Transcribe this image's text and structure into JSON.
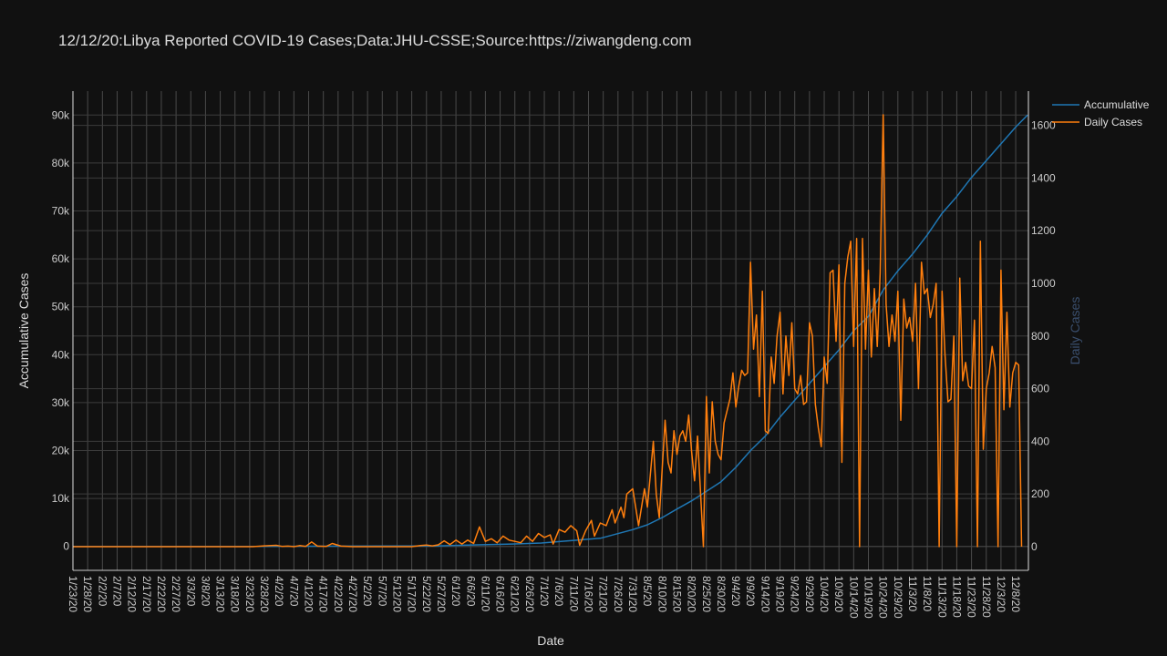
{
  "chart_data": {
    "type": "line",
    "title": "12/12/20:Libya Reported COVID-19 Cases;Data:JHU-CSSE;Source:https://ziwangdeng.com",
    "xlabel": "Date",
    "ylabel_left": "Accumulative Cases",
    "ylabel_right": "Daily Cases",
    "x_range": [
      "1/23/20",
      "12/12/20"
    ],
    "x_ticks": [
      "1/23/20",
      "1/28/20",
      "2/2/20",
      "2/7/20",
      "2/12/20",
      "2/17/20",
      "2/22/20",
      "2/27/20",
      "3/3/20",
      "3/8/20",
      "3/13/20",
      "3/18/20",
      "3/23/20",
      "3/28/20",
      "4/2/20",
      "4/7/20",
      "4/12/20",
      "4/17/20",
      "4/22/20",
      "4/27/20",
      "5/2/20",
      "5/7/20",
      "5/12/20",
      "5/17/20",
      "5/22/20",
      "5/27/20",
      "6/1/20",
      "6/6/20",
      "6/11/20",
      "6/16/20",
      "6/21/20",
      "6/26/20",
      "7/1/20",
      "7/6/20",
      "7/11/20",
      "7/16/20",
      "7/21/20",
      "7/26/20",
      "7/31/20",
      "8/5/20",
      "8/10/20",
      "8/15/20",
      "8/20/20",
      "8/25/20",
      "8/30/20",
      "9/4/20",
      "9/9/20",
      "9/14/20",
      "9/19/20",
      "9/24/20",
      "9/29/20",
      "10/4/20",
      "10/9/20",
      "10/14/20",
      "10/19/20",
      "10/24/20",
      "10/29/20",
      "11/3/20",
      "11/8/20",
      "11/13/20",
      "11/18/20",
      "11/23/20",
      "11/28/20",
      "12/3/20",
      "12/8/20"
    ],
    "y_left_ticks": [
      "0",
      "10k",
      "20k",
      "30k",
      "40k",
      "50k",
      "60k",
      "70k",
      "80k",
      "90k"
    ],
    "y_left_range": [
      -5000,
      95000
    ],
    "y_right_ticks": [
      "0",
      "200",
      "400",
      "600",
      "800",
      "1000",
      "1200",
      "1400",
      "1600"
    ],
    "y_right_range": [
      -90,
      1730
    ],
    "legend_position": "top-right",
    "series": [
      {
        "name": "Accumulative",
        "color": "#1f77b4",
        "axis": "left",
        "points": [
          [
            "1/23/20",
            0
          ],
          [
            "3/24/20",
            0
          ],
          [
            "4/15/20",
            40
          ],
          [
            "5/15/20",
            70
          ],
          [
            "5/25/20",
            100
          ],
          [
            "6/1/20",
            200
          ],
          [
            "6/10/20",
            350
          ],
          [
            "6/20/20",
            500
          ],
          [
            "6/30/20",
            700
          ],
          [
            "7/10/20",
            1200
          ],
          [
            "7/20/20",
            1700
          ],
          [
            "7/31/20",
            3500
          ],
          [
            "8/5/20",
            4500
          ],
          [
            "8/10/20",
            6000
          ],
          [
            "8/15/20",
            7800
          ],
          [
            "8/20/20",
            9500
          ],
          [
            "8/25/20",
            11500
          ],
          [
            "8/30/20",
            13500
          ],
          [
            "9/4/20",
            16500
          ],
          [
            "9/9/20",
            20000
          ],
          [
            "9/14/20",
            23000
          ],
          [
            "9/19/20",
            27000
          ],
          [
            "9/24/20",
            30500
          ],
          [
            "9/29/20",
            34000
          ],
          [
            "10/4/20",
            37500
          ],
          [
            "10/9/20",
            41000
          ],
          [
            "10/14/20",
            45000
          ],
          [
            "10/19/20",
            48000
          ],
          [
            "10/24/20",
            53500
          ],
          [
            "10/29/20",
            57500
          ],
          [
            "11/3/20",
            61000
          ],
          [
            "11/8/20",
            65000
          ],
          [
            "11/13/20",
            69500
          ],
          [
            "11/18/20",
            73000
          ],
          [
            "11/23/20",
            77000
          ],
          [
            "11/28/20",
            80500
          ],
          [
            "12/3/20",
            84000
          ],
          [
            "12/8/20",
            87500
          ],
          [
            "12/12/20",
            90000
          ]
        ]
      },
      {
        "name": "Daily Cases",
        "color": "#ff7f0e",
        "axis": "right",
        "points": [
          [
            "1/23/20",
            0
          ],
          [
            "3/24/20",
            0
          ],
          [
            "3/28/20",
            3
          ],
          [
            "4/1/20",
            5
          ],
          [
            "4/3/20",
            1
          ],
          [
            "4/5/20",
            2
          ],
          [
            "4/7/20",
            0
          ],
          [
            "4/9/20",
            4
          ],
          [
            "4/11/20",
            1
          ],
          [
            "4/13/20",
            18
          ],
          [
            "4/15/20",
            2
          ],
          [
            "4/18/20",
            1
          ],
          [
            "4/20/20",
            12
          ],
          [
            "4/23/20",
            2
          ],
          [
            "4/27/20",
            0
          ],
          [
            "5/17/20",
            0
          ],
          [
            "5/20/20",
            4
          ],
          [
            "5/22/20",
            6
          ],
          [
            "5/24/20",
            3
          ],
          [
            "5/26/20",
            7
          ],
          [
            "5/28/20",
            22
          ],
          [
            "5/30/20",
            8
          ],
          [
            "6/1/20",
            25
          ],
          [
            "6/3/20",
            10
          ],
          [
            "6/5/20",
            25
          ],
          [
            "6/7/20",
            12
          ],
          [
            "6/9/20",
            75
          ],
          [
            "6/11/20",
            20
          ],
          [
            "6/13/20",
            30
          ],
          [
            "6/15/20",
            15
          ],
          [
            "6/17/20",
            40
          ],
          [
            "6/19/20",
            25
          ],
          [
            "6/21/20",
            20
          ],
          [
            "6/23/20",
            15
          ],
          [
            "6/25/20",
            40
          ],
          [
            "6/27/20",
            20
          ],
          [
            "6/29/20",
            50
          ],
          [
            "7/1/20",
            35
          ],
          [
            "7/3/20",
            45
          ],
          [
            "7/4/20",
            10
          ],
          [
            "7/6/20",
            65
          ],
          [
            "7/8/20",
            55
          ],
          [
            "7/10/20",
            80
          ],
          [
            "7/12/20",
            60
          ],
          [
            "7/13/20",
            5
          ],
          [
            "7/15/20",
            60
          ],
          [
            "7/17/20",
            100
          ],
          [
            "7/18/20",
            40
          ],
          [
            "7/20/20",
            90
          ],
          [
            "7/22/20",
            80
          ],
          [
            "7/24/20",
            140
          ],
          [
            "7/25/20",
            90
          ],
          [
            "7/27/20",
            150
          ],
          [
            "7/28/20",
            110
          ],
          [
            "7/29/20",
            200
          ],
          [
            "7/31/20",
            220
          ],
          [
            "8/2/20",
            80
          ],
          [
            "8/4/20",
            220
          ],
          [
            "8/5/20",
            150
          ],
          [
            "8/7/20",
            400
          ],
          [
            "8/8/20",
            200
          ],
          [
            "8/9/20",
            110
          ],
          [
            "8/11/20",
            480
          ],
          [
            "8/12/20",
            320
          ],
          [
            "8/13/20",
            280
          ],
          [
            "8/14/20",
            440
          ],
          [
            "8/15/20",
            350
          ],
          [
            "8/16/20",
            420
          ],
          [
            "8/17/20",
            440
          ],
          [
            "8/18/20",
            400
          ],
          [
            "8/19/20",
            500
          ],
          [
            "8/20/20",
            360
          ],
          [
            "8/21/20",
            250
          ],
          [
            "8/22/20",
            420
          ],
          [
            "8/24/20",
            0
          ],
          [
            "8/25/20",
            570
          ],
          [
            "8/26/20",
            280
          ],
          [
            "8/27/20",
            550
          ],
          [
            "8/28/20",
            400
          ],
          [
            "8/29/20",
            350
          ],
          [
            "8/30/20",
            330
          ],
          [
            "8/31/20",
            470
          ],
          [
            "9/2/20",
            560
          ],
          [
            "9/3/20",
            660
          ],
          [
            "9/4/20",
            530
          ],
          [
            "9/5/20",
            610
          ],
          [
            "9/6/20",
            670
          ],
          [
            "9/7/20",
            650
          ],
          [
            "9/8/20",
            660
          ],
          [
            "9/9/20",
            1080
          ],
          [
            "9/10/20",
            750
          ],
          [
            "9/11/20",
            880
          ],
          [
            "9/12/20",
            570
          ],
          [
            "9/13/20",
            970
          ],
          [
            "9/14/20",
            440
          ],
          [
            "9/15/20",
            430
          ],
          [
            "9/16/20",
            720
          ],
          [
            "9/17/20",
            620
          ],
          [
            "9/18/20",
            800
          ],
          [
            "9/19/20",
            890
          ],
          [
            "9/20/20",
            580
          ],
          [
            "9/21/20",
            800
          ],
          [
            "9/22/20",
            650
          ],
          [
            "9/23/20",
            850
          ],
          [
            "9/24/20",
            600
          ],
          [
            "9/25/20",
            580
          ],
          [
            "9/26/20",
            650
          ],
          [
            "9/27/20",
            540
          ],
          [
            "9/28/20",
            550
          ],
          [
            "9/29/20",
            850
          ],
          [
            "9/30/20",
            800
          ],
          [
            "10/1/20",
            540
          ],
          [
            "10/2/20",
            450
          ],
          [
            "10/3/20",
            380
          ],
          [
            "10/4/20",
            720
          ],
          [
            "10/5/20",
            620
          ],
          [
            "10/6/20",
            1040
          ],
          [
            "10/7/20",
            1050
          ],
          [
            "10/8/20",
            780
          ],
          [
            "10/9/20",
            1070
          ],
          [
            "10/10/20",
            320
          ],
          [
            "10/11/20",
            1000
          ],
          [
            "10/12/20",
            1100
          ],
          [
            "10/13/20",
            1160
          ],
          [
            "10/14/20",
            760
          ],
          [
            "10/15/20",
            1170
          ],
          [
            "10/16/20",
            0
          ],
          [
            "10/17/20",
            1170
          ],
          [
            "10/18/20",
            750
          ],
          [
            "10/19/20",
            1050
          ],
          [
            "10/20/20",
            720
          ],
          [
            "10/21/20",
            980
          ],
          [
            "10/22/20",
            760
          ],
          [
            "10/23/20",
            1040
          ],
          [
            "10/24/20",
            1640
          ],
          [
            "10/25/20",
            920
          ],
          [
            "10/26/20",
            760
          ],
          [
            "10/27/20",
            880
          ],
          [
            "10/28/20",
            780
          ],
          [
            "10/29/20",
            970
          ],
          [
            "10/30/20",
            480
          ],
          [
            "10/31/20",
            940
          ],
          [
            "11/1/20",
            830
          ],
          [
            "11/2/20",
            870
          ],
          [
            "11/3/20",
            780
          ],
          [
            "11/4/20",
            1000
          ],
          [
            "11/5/20",
            600
          ],
          [
            "11/6/20",
            1080
          ],
          [
            "11/7/20",
            960
          ],
          [
            "11/8/20",
            980
          ],
          [
            "11/9/20",
            870
          ],
          [
            "11/10/20",
            920
          ],
          [
            "11/11/20",
            1000
          ],
          [
            "11/12/20",
            0
          ],
          [
            "11/13/20",
            970
          ],
          [
            "11/14/20",
            730
          ],
          [
            "11/15/20",
            550
          ],
          [
            "11/16/20",
            560
          ],
          [
            "11/17/20",
            800
          ],
          [
            "11/18/20",
            0
          ],
          [
            "11/19/20",
            1020
          ],
          [
            "11/20/20",
            630
          ],
          [
            "11/21/20",
            700
          ],
          [
            "11/22/20",
            610
          ],
          [
            "11/23/20",
            600
          ],
          [
            "11/24/20",
            860
          ],
          [
            "11/25/20",
            0
          ],
          [
            "11/26/20",
            1160
          ],
          [
            "11/27/20",
            370
          ],
          [
            "11/28/20",
            600
          ],
          [
            "11/29/20",
            660
          ],
          [
            "11/30/20",
            760
          ],
          [
            "12/1/20",
            680
          ],
          [
            "12/2/20",
            0
          ],
          [
            "12/3/20",
            1050
          ],
          [
            "12/4/20",
            520
          ],
          [
            "12/5/20",
            890
          ],
          [
            "12/6/20",
            530
          ],
          [
            "12/7/20",
            660
          ],
          [
            "12/8/20",
            700
          ],
          [
            "12/9/20",
            690
          ],
          [
            "12/10/20",
            0
          ]
        ]
      }
    ]
  }
}
